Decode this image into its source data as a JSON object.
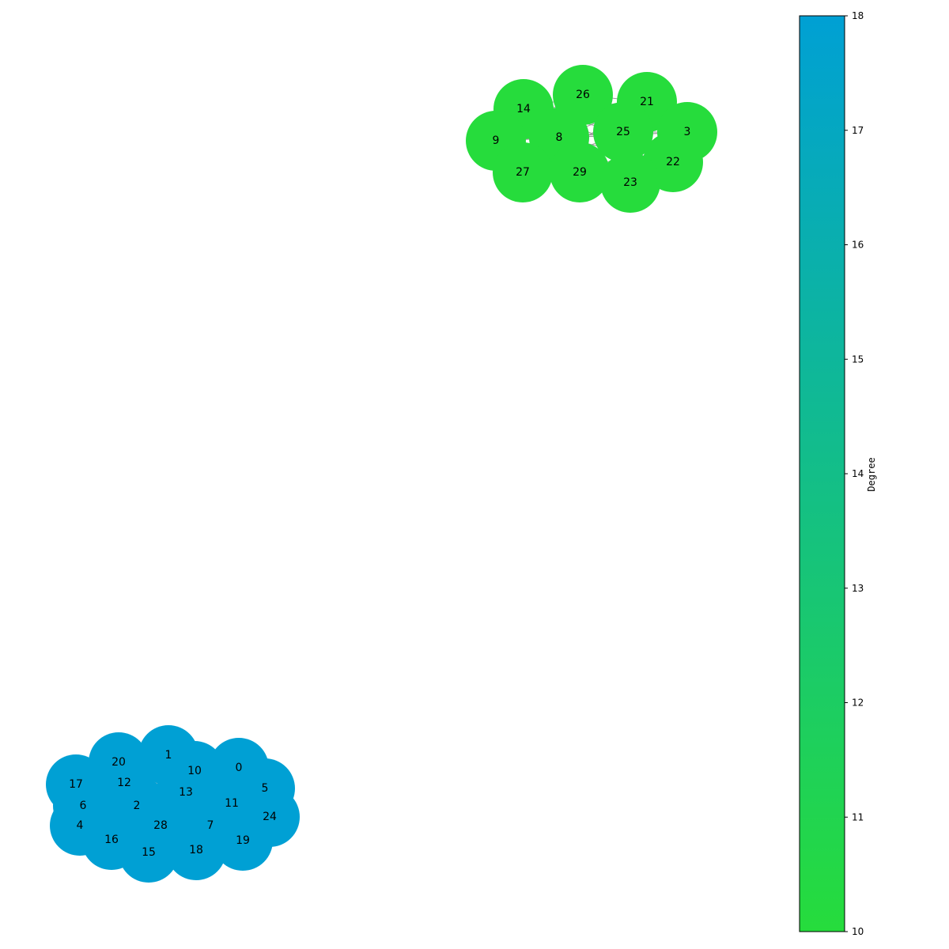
{
  "graph": {
    "components": [
      {
        "name": "green-cluster",
        "degree": 10,
        "color": "#26dc3c",
        "nodes": [
          "14",
          "26",
          "21",
          "9",
          "8",
          "25",
          "3",
          "22",
          "27",
          "29",
          "23"
        ]
      },
      {
        "name": "blue-cluster",
        "degree": 18,
        "color": "#00a0d4",
        "nodes": [
          "20",
          "1",
          "10",
          "0",
          "17",
          "12",
          "13",
          "5",
          "6",
          "2",
          "11",
          "24",
          "4",
          "28",
          "7",
          "16",
          "19",
          "15",
          "18"
        ]
      }
    ]
  },
  "colorbar": {
    "label": "Degree",
    "min": 10,
    "max": 18,
    "ticks": [
      "10",
      "11",
      "12",
      "13",
      "14",
      "15",
      "16",
      "17",
      "18"
    ],
    "color_low": "#26dc3c",
    "color_high": "#00a0d4"
  }
}
